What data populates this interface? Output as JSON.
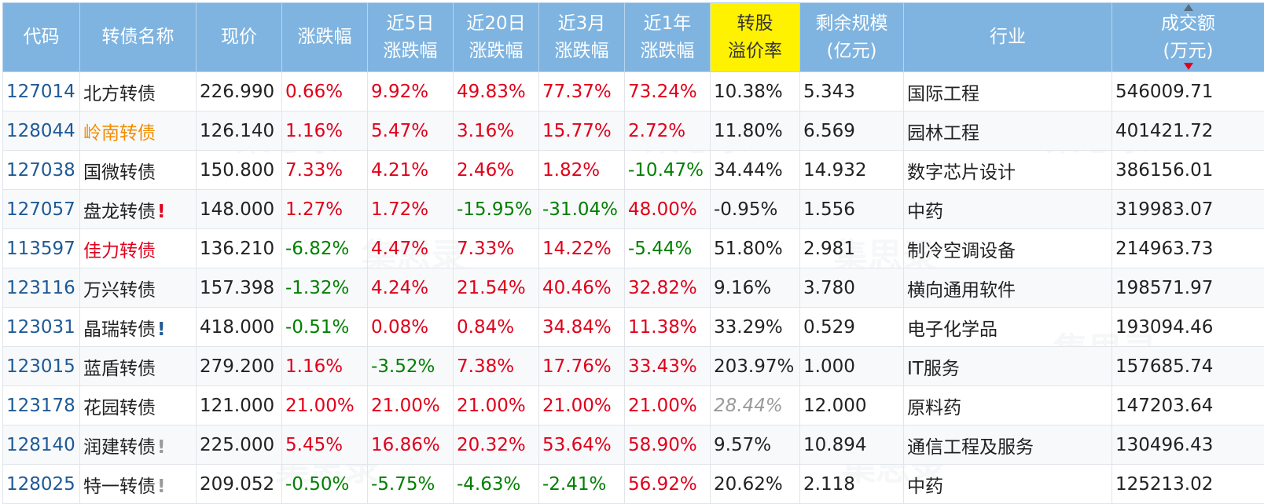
{
  "headers": {
    "code": "代码",
    "name": "转债名称",
    "price": "现价",
    "change": "涨跌幅",
    "d5_line1": "近5日",
    "d5_line2": "涨跌幅",
    "d20_line1": "近20日",
    "d20_line2": "涨跌幅",
    "m3_line1": "近3月",
    "m3_line2": "涨跌幅",
    "y1_line1": "近1年",
    "y1_line2": "涨跌幅",
    "premium_line1": "转股",
    "premium_line2": "溢价率",
    "scale_line1": "剩余规模",
    "scale_line2": "(亿元)",
    "industry": "行业",
    "volume_line1": "成交额",
    "volume_line2": "(万元)"
  },
  "colors": {
    "header_bg": "#7fb4e0",
    "premium_header_bg": "#fff200",
    "code": "#1e5a96",
    "up": "#e0001b",
    "down": "#008000",
    "name_orange": "#f08c00",
    "name_red": "#e0001b",
    "warn_red": "#e0001b",
    "warn_blue": "#1e5a96",
    "warn_gray": "#999999"
  },
  "watermark_text": "集思录",
  "rows": [
    {
      "code": "127014",
      "name": "北方转债",
      "name_color": "",
      "warn": "",
      "warn_color": "",
      "price": "226.990",
      "change": "0.66%",
      "d5": "9.92%",
      "d20": "49.83%",
      "m3": "77.37%",
      "y1": "73.24%",
      "premium": "10.38%",
      "premium_muted": false,
      "scale": "5.343",
      "industry": "国际工程",
      "volume": "546009.71"
    },
    {
      "code": "128044",
      "name": "岭南转债",
      "name_color": "#f08c00",
      "warn": "",
      "warn_color": "",
      "price": "126.140",
      "change": "1.16%",
      "d5": "5.47%",
      "d20": "3.16%",
      "m3": "15.77%",
      "y1": "2.72%",
      "premium": "11.80%",
      "premium_muted": false,
      "scale": "6.569",
      "industry": "园林工程",
      "volume": "401421.72"
    },
    {
      "code": "127038",
      "name": "国微转债",
      "name_color": "",
      "warn": "",
      "warn_color": "",
      "price": "150.800",
      "change": "7.33%",
      "d5": "4.21%",
      "d20": "2.46%",
      "m3": "1.82%",
      "y1": "-10.47%",
      "premium": "34.44%",
      "premium_muted": false,
      "scale": "14.932",
      "industry": "数字芯片设计",
      "volume": "386156.01"
    },
    {
      "code": "127057",
      "name": "盘龙转债",
      "name_color": "",
      "warn": "!",
      "warn_color": "#e0001b",
      "price": "148.000",
      "change": "1.27%",
      "d5": "1.72%",
      "d20": "-15.95%",
      "m3": "-31.04%",
      "y1": "48.00%",
      "premium": "-0.95%",
      "premium_muted": false,
      "scale": "1.556",
      "industry": "中药",
      "volume": "319983.07"
    },
    {
      "code": "113597",
      "name": "佳力转债",
      "name_color": "#e0001b",
      "warn": "",
      "warn_color": "",
      "price": "136.210",
      "change": "-6.82%",
      "d5": "4.47%",
      "d20": "7.33%",
      "m3": "14.22%",
      "y1": "-5.44%",
      "premium": "51.80%",
      "premium_muted": false,
      "scale": "2.981",
      "industry": "制冷空调设备",
      "volume": "214963.73"
    },
    {
      "code": "123116",
      "name": "万兴转债",
      "name_color": "",
      "warn": "",
      "warn_color": "",
      "price": "157.398",
      "change": "-1.32%",
      "d5": "4.24%",
      "d20": "21.54%",
      "m3": "40.46%",
      "y1": "32.82%",
      "premium": "9.16%",
      "premium_muted": false,
      "scale": "3.780",
      "industry": "横向通用软件",
      "volume": "198571.97"
    },
    {
      "code": "123031",
      "name": "晶瑞转债",
      "name_color": "",
      "warn": "!",
      "warn_color": "#1e5a96",
      "price": "418.000",
      "change": "-0.51%",
      "d5": "0.08%",
      "d20": "0.84%",
      "m3": "34.84%",
      "y1": "11.38%",
      "premium": "33.29%",
      "premium_muted": false,
      "scale": "0.529",
      "industry": "电子化学品",
      "volume": "193094.46"
    },
    {
      "code": "123015",
      "name": "蓝盾转债",
      "name_color": "",
      "warn": "",
      "warn_color": "",
      "price": "279.200",
      "change": "1.16%",
      "d5": "-3.52%",
      "d20": "7.38%",
      "m3": "17.76%",
      "y1": "33.43%",
      "premium": "203.97%",
      "premium_muted": false,
      "scale": "1.000",
      "industry": "IT服务",
      "volume": "157685.74"
    },
    {
      "code": "123178",
      "name": "花园转债",
      "name_color": "",
      "warn": "",
      "warn_color": "",
      "price": "121.000",
      "change": "21.00%",
      "d5": "21.00%",
      "d20": "21.00%",
      "m3": "21.00%",
      "y1": "21.00%",
      "premium": "28.44%",
      "premium_muted": true,
      "scale": "12.000",
      "industry": "原料药",
      "volume": "147203.64"
    },
    {
      "code": "128140",
      "name": "润建转债",
      "name_color": "",
      "warn": "!",
      "warn_color": "#999999",
      "price": "225.000",
      "change": "5.45%",
      "d5": "16.86%",
      "d20": "20.32%",
      "m3": "53.64%",
      "y1": "58.90%",
      "premium": "9.57%",
      "premium_muted": false,
      "scale": "10.894",
      "industry": "通信工程及服务",
      "volume": "130496.43"
    },
    {
      "code": "128025",
      "name": "特一转债",
      "name_color": "",
      "warn": "!",
      "warn_color": "#999999",
      "price": "209.052",
      "change": "-0.50%",
      "d5": "-5.75%",
      "d20": "-4.63%",
      "m3": "-2.41%",
      "y1": "56.92%",
      "premium": "20.62%",
      "premium_muted": false,
      "scale": "2.118",
      "industry": "中药",
      "volume": "125213.02"
    }
  ]
}
